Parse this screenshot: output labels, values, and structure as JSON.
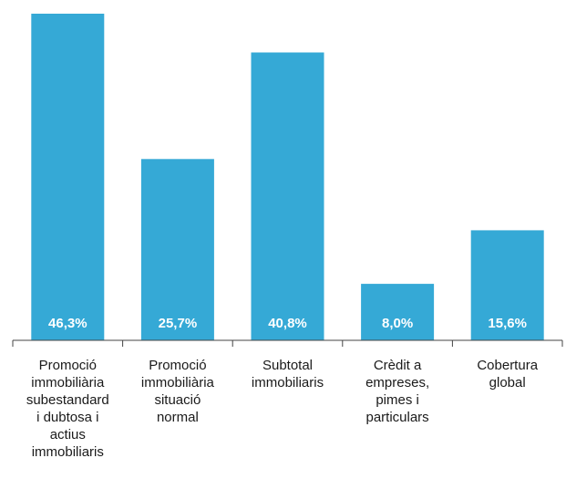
{
  "chart_data": {
    "type": "bar",
    "categories": [
      [
        "Promoció",
        "immobiliària",
        "subestandard",
        "i dubtosa i",
        "actius",
        "immobiliaris"
      ],
      [
        "Promoció",
        "immobiliària",
        "situació",
        "normal"
      ],
      [
        "Subtotal",
        "immobiliaris"
      ],
      [
        "Crèdit a",
        "empreses,",
        "pimes i",
        "particulars"
      ],
      [
        "Cobertura",
        "global"
      ]
    ],
    "values": [
      46.3,
      25.7,
      40.8,
      8.0,
      15.6
    ],
    "data_labels": [
      "46,3%",
      "25,7%",
      "40,8%",
      "8,0%",
      "15,6%"
    ],
    "ylim": [
      0,
      46.3
    ],
    "bar_color": "#35a9d6",
    "label_color": "#ffffff",
    "axis_color": "#444444",
    "grid": false,
    "legend": "none",
    "title": "",
    "xlabel": "",
    "ylabel": ""
  }
}
